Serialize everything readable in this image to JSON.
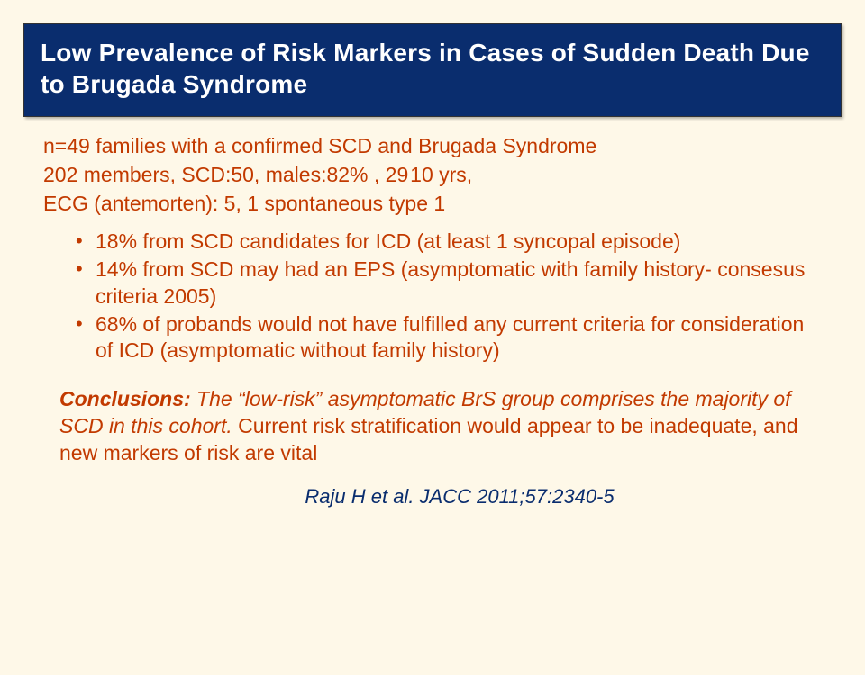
{
  "title": "Low Prevalence of Risk Markers in Cases of Sudden Death Due to Brugada Syndrome",
  "intro": {
    "line1": "n=49 families with a confirmed SCD and Brugada Syndrome",
    "line2": "202 members, SCD:50, males:82% , 29 10 yrs,",
    "line3": "ECG (antemorten): 5,   1 spontaneous type 1"
  },
  "bullets": {
    "b1": "18% from SCD candidates for ICD (at least 1 syncopal episode)",
    "b2": "14% from SCD may had an EPS (asymptomatic with family history- consesus criteria 2005)",
    "b3": "68% of probands would not have fulfilled any current criteria for consideration of ICD (asymptomatic without family history)"
  },
  "conclusion": {
    "label": "Conclusions:",
    "text_italic": " The “low-risk” asymptomatic BrS group comprises the majority of SCD in this cohort.",
    "text_plain": " Current risk stratification would appear to be inadequate, and new markers of risk are vital"
  },
  "citation": "Raju H et al. JACC 2011;57:2340-5",
  "colors": {
    "background": "#fef8e8",
    "title_band": "#0a2d6e",
    "title_text": "#ffffff",
    "body_text": "#c23a00",
    "citation_text": "#0a2d6e"
  }
}
